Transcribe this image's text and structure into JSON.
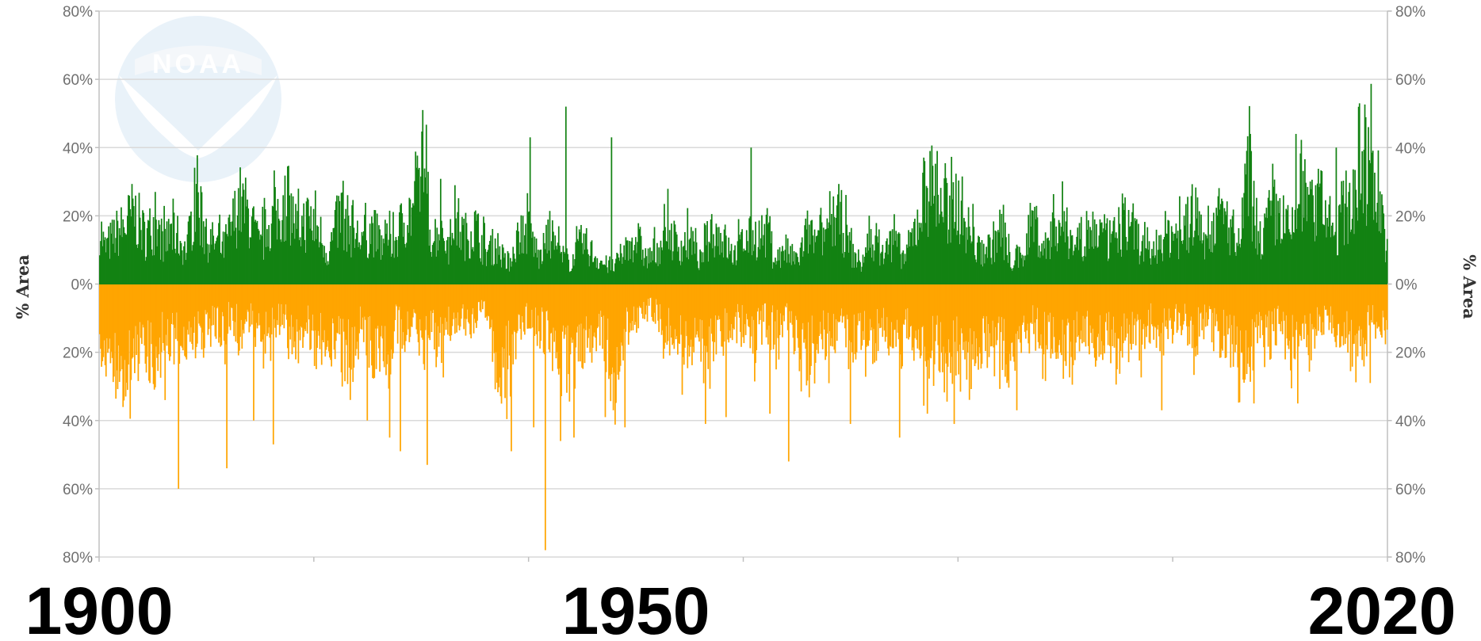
{
  "chart_data": {
    "type": "bar",
    "title": "",
    "xlabel": "",
    "ylabel": "% Area",
    "ylabel_right": "% Area",
    "ylim": [
      -80,
      80
    ],
    "yticks": [
      80,
      60,
      40,
      20,
      0,
      -20,
      -40,
      -60,
      -80
    ],
    "ytick_labels": [
      "80%",
      "60%",
      "40%",
      "20%",
      "0%",
      "20%",
      "40%",
      "60%",
      "80%"
    ],
    "grid": true,
    "legend": "none",
    "xrange": [
      1900,
      2020
    ],
    "year_labels": [
      {
        "year": 1900,
        "text": "1900"
      },
      {
        "year": 1950,
        "text": "1950"
      },
      {
        "year": 2020,
        "text": "2020"
      }
    ],
    "logo_text": "NOAA",
    "colors": {
      "wet": "#138213",
      "dry": "#FFA500",
      "grid": "#d9d9d9",
      "axis": "#c0c0c0"
    },
    "series": [
      {
        "sign": "positive",
        "color": "#138213",
        "anchors": [
          [
            1900.0,
            25
          ],
          [
            1900.5,
            14
          ],
          [
            1901.5,
            20
          ],
          [
            1902.4,
            23
          ],
          [
            1903.2,
            29
          ],
          [
            1904.3,
            19
          ],
          [
            1905.0,
            24
          ],
          [
            1906.0,
            17
          ],
          [
            1907.0,
            21
          ],
          [
            1908.1,
            13
          ],
          [
            1909.0,
            35
          ],
          [
            1910.0,
            18
          ],
          [
            1911.0,
            16
          ],
          [
            1911.5,
            14
          ],
          [
            1912.3,
            22
          ],
          [
            1913.0,
            33
          ],
          [
            1914.0,
            27
          ],
          [
            1915.0,
            14
          ],
          [
            1915.7,
            24
          ],
          [
            1916.5,
            27
          ],
          [
            1917.5,
            34
          ],
          [
            1918.4,
            22
          ],
          [
            1919.5,
            26
          ],
          [
            1920.5,
            21
          ],
          [
            1921.3,
            12
          ],
          [
            1922.5,
            29
          ],
          [
            1923.5,
            21
          ],
          [
            1924.3,
            18
          ],
          [
            1925.0,
            20
          ],
          [
            1925.5,
            22
          ],
          [
            1926.5,
            14
          ],
          [
            1927.0,
            20
          ],
          [
            1927.5,
            17
          ],
          [
            1928.5,
            27
          ],
          [
            1929.5,
            31
          ],
          [
            1930.1,
            51
          ],
          [
            1931.0,
            18
          ],
          [
            1932.0,
            25
          ],
          [
            1932.5,
            12
          ],
          [
            1933.0,
            28
          ],
          [
            1934.0,
            19
          ],
          [
            1935.0,
            23
          ],
          [
            1936.0,
            13
          ],
          [
            1937.0,
            16
          ],
          [
            1938.0,
            7
          ],
          [
            1939.0,
            19
          ],
          [
            1940.0,
            22
          ],
          [
            1941.0,
            10
          ],
          [
            1942.0,
            20
          ],
          [
            1943.0,
            11
          ],
          [
            1944.0,
            9
          ],
          [
            1945.0,
            17
          ],
          [
            1946.0,
            12
          ],
          [
            1947.0,
            8
          ],
          [
            1948.0,
            7
          ],
          [
            1949.0,
            14
          ],
          [
            1950.0,
            19
          ],
          [
            1951.0,
            10
          ],
          [
            1952.0,
            14
          ],
          [
            1953.0,
            21
          ],
          [
            1954.0,
            15
          ],
          [
            1955.0,
            17
          ],
          [
            1956.0,
            9
          ],
          [
            1957.0,
            22
          ],
          [
            1958.0,
            19
          ],
          [
            1959.0,
            11
          ],
          [
            1960.0,
            17
          ],
          [
            1961.0,
            19
          ],
          [
            1962.0,
            20
          ],
          [
            1963.0,
            10
          ],
          [
            1964.0,
            13
          ],
          [
            1965.0,
            9
          ],
          [
            1966.0,
            21
          ],
          [
            1967.0,
            15
          ],
          [
            1968.0,
            25
          ],
          [
            1969.0,
            27
          ],
          [
            1970.0,
            13
          ],
          [
            1971.0,
            8
          ],
          [
            1972.0,
            20
          ],
          [
            1973.0,
            12
          ],
          [
            1974.0,
            18
          ],
          [
            1975.0,
            10
          ],
          [
            1976.0,
            22
          ],
          [
            1977.0,
            39
          ],
          [
            1978.0,
            38
          ],
          [
            1979.0,
            28
          ],
          [
            1980.0,
            34
          ],
          [
            1981.0,
            21
          ],
          [
            1982.0,
            13
          ],
          [
            1983.0,
            15
          ],
          [
            1984.0,
            22
          ],
          [
            1985.0,
            9
          ],
          [
            1986.0,
            11
          ],
          [
            1987.0,
            27
          ],
          [
            1988.0,
            13
          ],
          [
            1989.0,
            26
          ],
          [
            1990.0,
            21
          ],
          [
            1991.0,
            17
          ],
          [
            1992.0,
            20
          ],
          [
            1993.0,
            22
          ],
          [
            1994.0,
            17
          ],
          [
            1995.0,
            20
          ],
          [
            1996.0,
            26
          ],
          [
            1997.0,
            15
          ],
          [
            1998.0,
            12
          ],
          [
            1999.0,
            19
          ],
          [
            2000.0,
            21
          ],
          [
            2001.0,
            20
          ],
          [
            2002.0,
            29
          ],
          [
            2003.0,
            18
          ],
          [
            2004.0,
            27
          ],
          [
            2005.0,
            26
          ],
          [
            2006.0,
            11
          ],
          [
            2007.0,
            44
          ],
          [
            2008.0,
            17
          ],
          [
            2009.0,
            26
          ],
          [
            2010.0,
            28
          ],
          [
            2011.0,
            19
          ],
          [
            2012.0,
            37
          ],
          [
            2013.0,
            28
          ],
          [
            2014.0,
            33
          ],
          [
            2015.0,
            18
          ],
          [
            2016.0,
            30
          ],
          [
            2017.0,
            36
          ],
          [
            2018.0,
            46
          ],
          [
            2019.0,
            41
          ],
          [
            2019.5,
            28
          ],
          [
            2020.0,
            11
          ]
        ],
        "peaks": [
          [
            1930.1,
            51
          ],
          [
            1940.1,
            43
          ],
          [
            1943.4,
            52
          ],
          [
            1947.7,
            43
          ],
          [
            1960.7,
            40
          ],
          [
            1977.3,
            39
          ],
          [
            1978.0,
            39
          ],
          [
            2007.2,
            44
          ],
          [
            2011.4,
            44
          ],
          [
            2015.2,
            40
          ],
          [
            2018.2,
            46
          ]
        ]
      },
      {
        "sign": "negative",
        "color": "#FFA500",
        "anchors": [
          [
            1900.0,
            -21
          ],
          [
            1900.5,
            -27
          ],
          [
            1901.5,
            -32
          ],
          [
            1902.4,
            -33
          ],
          [
            1903.2,
            -30
          ],
          [
            1904.3,
            -25
          ],
          [
            1905.0,
            -30
          ],
          [
            1906.0,
            -21
          ],
          [
            1907.0,
            -22
          ],
          [
            1908.1,
            -25
          ],
          [
            1909.0,
            -17
          ],
          [
            1910.0,
            -22
          ],
          [
            1911.0,
            -15
          ],
          [
            1911.5,
            -20
          ],
          [
            1912.3,
            -12
          ],
          [
            1913.0,
            -18
          ],
          [
            1914.0,
            -16
          ],
          [
            1915.0,
            -17
          ],
          [
            1915.7,
            -22
          ],
          [
            1916.5,
            -14
          ],
          [
            1917.5,
            -16
          ],
          [
            1918.4,
            -20
          ],
          [
            1919.5,
            -17
          ],
          [
            1920.5,
            -22
          ],
          [
            1921.3,
            -21
          ],
          [
            1922.5,
            -24
          ],
          [
            1923.5,
            -30
          ],
          [
            1924.3,
            -17
          ],
          [
            1925.0,
            -21
          ],
          [
            1925.5,
            -28
          ],
          [
            1926.5,
            -22
          ],
          [
            1927.0,
            -30
          ],
          [
            1927.5,
            -15
          ],
          [
            1928.5,
            -21
          ],
          [
            1929.5,
            -15
          ],
          [
            1930.1,
            -25
          ],
          [
            1931.0,
            -18
          ],
          [
            1932.0,
            -23
          ],
          [
            1933.0,
            -14
          ],
          [
            1934.0,
            -12
          ],
          [
            1935.0,
            -16
          ],
          [
            1936.0,
            -11
          ],
          [
            1937.0,
            -30
          ],
          [
            1938.0,
            -31
          ],
          [
            1939.0,
            -16
          ],
          [
            1940.0,
            -12
          ],
          [
            1941.0,
            -18
          ],
          [
            1942.0,
            -23
          ],
          [
            1943.0,
            -30
          ],
          [
            1944.0,
            -28
          ],
          [
            1945.0,
            -33
          ],
          [
            1946.0,
            -17
          ],
          [
            1947.0,
            -21
          ],
          [
            1948.0,
            -40
          ],
          [
            1949.0,
            -18
          ],
          [
            1950.0,
            -14
          ],
          [
            1951.0,
            -8
          ],
          [
            1952.0,
            -13
          ],
          [
            1953.0,
            -19
          ],
          [
            1954.0,
            -25
          ],
          [
            1955.0,
            -22
          ],
          [
            1956.0,
            -28
          ],
          [
            1957.0,
            -26
          ],
          [
            1958.0,
            -20
          ],
          [
            1959.0,
            -13
          ],
          [
            1960.0,
            -18
          ],
          [
            1961.0,
            -22
          ],
          [
            1962.0,
            -15
          ],
          [
            1963.0,
            -19
          ],
          [
            1964.0,
            -12
          ],
          [
            1965.0,
            -23
          ],
          [
            1966.0,
            -28
          ],
          [
            1967.0,
            -19
          ],
          [
            1968.0,
            -24
          ],
          [
            1969.0,
            -13
          ],
          [
            1970.0,
            -22
          ],
          [
            1971.0,
            -19
          ],
          [
            1972.0,
            -25
          ],
          [
            1973.0,
            -16
          ],
          [
            1974.0,
            -29
          ],
          [
            1975.0,
            -18
          ],
          [
            1976.0,
            -24
          ],
          [
            1977.0,
            -28
          ],
          [
            1978.0,
            -22
          ],
          [
            1979.0,
            -32
          ],
          [
            1980.0,
            -26
          ],
          [
            1981.0,
            -35
          ],
          [
            1982.0,
            -24
          ],
          [
            1983.0,
            -19
          ],
          [
            1984.0,
            -25
          ],
          [
            1985.0,
            -29
          ],
          [
            1986.0,
            -21
          ],
          [
            1987.0,
            -15
          ],
          [
            1988.0,
            -22
          ],
          [
            1989.0,
            -19
          ],
          [
            1990.0,
            -28
          ],
          [
            1991.0,
            -20
          ],
          [
            1992.0,
            -16
          ],
          [
            1993.0,
            -24
          ],
          [
            1994.0,
            -18
          ],
          [
            1995.0,
            -25
          ],
          [
            1996.0,
            -17
          ],
          [
            1997.0,
            -22
          ],
          [
            1998.0,
            -14
          ],
          [
            1999.0,
            -20
          ],
          [
            2000.0,
            -18
          ],
          [
            2001.0,
            -13
          ],
          [
            2002.0,
            -21
          ],
          [
            2003.0,
            -16
          ],
          [
            2004.0,
            -19
          ],
          [
            2005.0,
            -22
          ],
          [
            2006.0,
            -27
          ],
          [
            2007.0,
            -30
          ],
          [
            2008.0,
            -18
          ],
          [
            2009.0,
            -22
          ],
          [
            2010.0,
            -13
          ],
          [
            2011.0,
            -25
          ],
          [
            2012.0,
            -17
          ],
          [
            2013.0,
            -22
          ],
          [
            2014.0,
            -14
          ],
          [
            2015.0,
            -16
          ],
          [
            2016.0,
            -20
          ],
          [
            2017.0,
            -29
          ],
          [
            2018.0,
            -16
          ],
          [
            2019.0,
            -12
          ],
          [
            2020.0,
            -18
          ]
        ],
        "peaks": [
          [
            1906.1,
            -34
          ],
          [
            1907.3,
            -60
          ],
          [
            1911.8,
            -54
          ],
          [
            1914.3,
            -40
          ],
          [
            1916.2,
            -47
          ],
          [
            1924.9,
            -40
          ],
          [
            1927.0,
            -45
          ],
          [
            1928.0,
            -49
          ],
          [
            1930.5,
            -53
          ],
          [
            1938.3,
            -49
          ],
          [
            1940.4,
            -42
          ],
          [
            1941.5,
            -78
          ],
          [
            1942.9,
            -46
          ],
          [
            1944.2,
            -45
          ],
          [
            1947.1,
            -39
          ],
          [
            1948.9,
            -42
          ],
          [
            1956.4,
            -41
          ],
          [
            1958.3,
            -39
          ],
          [
            1962.4,
            -38
          ],
          [
            1964.2,
            -52
          ],
          [
            1969.9,
            -41
          ],
          [
            1974.5,
            -45
          ],
          [
            1977.1,
            -38
          ],
          [
            1979.6,
            -41
          ],
          [
            1985.4,
            -37
          ],
          [
            1998.9,
            -37
          ],
          [
            2007.5,
            -35
          ],
          [
            2011.6,
            -35
          ],
          [
            2018.3,
            -29
          ]
        ]
      }
    ]
  }
}
